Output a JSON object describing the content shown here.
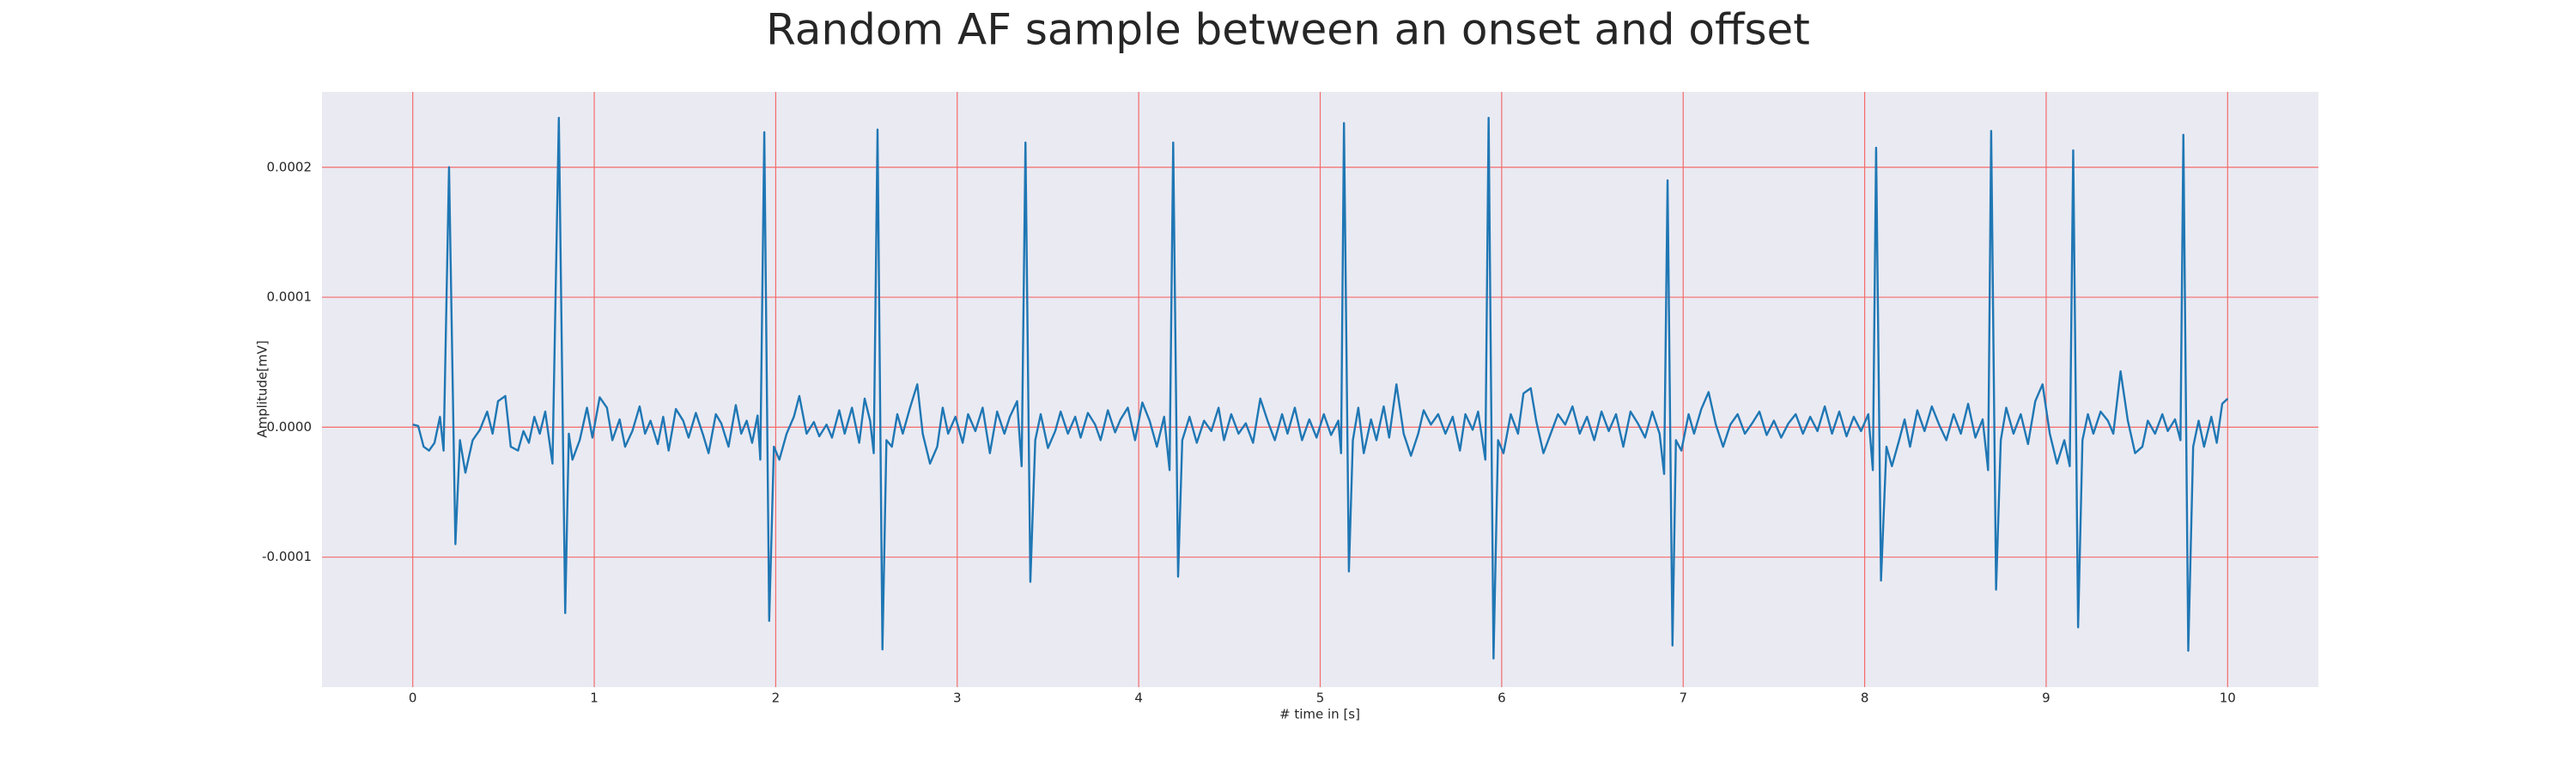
{
  "chart_data": {
    "type": "line",
    "title": "Random AF sample between an onset and offset",
    "xlabel": "# time in [s]",
    "ylabel": "Amplitude[mV]",
    "color": "#1f77b4",
    "grid": true,
    "grid_color": "#f46b6b",
    "xlim": [
      -0.5,
      10.5
    ],
    "ylim": [
      -0.0002,
      0.000258
    ],
    "xticks": [
      0,
      1,
      2,
      3,
      4,
      5,
      6,
      7,
      8,
      9,
      10
    ],
    "yticks": [
      {
        "value": -0.0001,
        "label": "-0.0001"
      },
      {
        "value": 0,
        "label": "0.0000"
      },
      {
        "value": 0.0001,
        "label": "0.0001"
      },
      {
        "value": 0.0002,
        "label": "0.0002"
      }
    ],
    "x": [
      0.0,
      0.03,
      0.06,
      0.09,
      0.12,
      0.15,
      0.17,
      0.2,
      0.235,
      0.26,
      0.29,
      0.33,
      0.37,
      0.41,
      0.44,
      0.47,
      0.51,
      0.54,
      0.58,
      0.61,
      0.64,
      0.67,
      0.7,
      0.73,
      0.77,
      0.805,
      0.84,
      0.86,
      0.88,
      0.92,
      0.96,
      0.99,
      1.03,
      1.07,
      1.1,
      1.14,
      1.17,
      1.21,
      1.25,
      1.28,
      1.31,
      1.35,
      1.38,
      1.41,
      1.45,
      1.49,
      1.52,
      1.56,
      1.6,
      1.63,
      1.67,
      1.7,
      1.74,
      1.78,
      1.81,
      1.84,
      1.87,
      1.9,
      1.915,
      1.937,
      1.964,
      1.99,
      2.02,
      2.06,
      2.1,
      2.13,
      2.17,
      2.21,
      2.24,
      2.28,
      2.31,
      2.35,
      2.38,
      2.42,
      2.46,
      2.49,
      2.52,
      2.54,
      2.561,
      2.588,
      2.61,
      2.64,
      2.67,
      2.7,
      2.74,
      2.78,
      2.81,
      2.85,
      2.89,
      2.92,
      2.95,
      2.99,
      3.03,
      3.06,
      3.1,
      3.14,
      3.18,
      3.22,
      3.26,
      3.29,
      3.33,
      3.355,
      3.376,
      3.403,
      3.43,
      3.46,
      3.5,
      3.54,
      3.57,
      3.61,
      3.65,
      3.68,
      3.72,
      3.76,
      3.79,
      3.83,
      3.87,
      3.9,
      3.94,
      3.98,
      4.02,
      4.06,
      4.1,
      4.14,
      4.17,
      4.19,
      4.217,
      4.24,
      4.28,
      4.32,
      4.36,
      4.4,
      4.44,
      4.47,
      4.51,
      4.55,
      4.59,
      4.63,
      4.67,
      4.71,
      4.75,
      4.79,
      4.82,
      4.86,
      4.9,
      4.94,
      4.98,
      5.02,
      5.06,
      5.1,
      5.115,
      5.131,
      5.158,
      5.18,
      5.21,
      5.24,
      5.28,
      5.31,
      5.35,
      5.38,
      5.42,
      5.46,
      5.5,
      5.54,
      5.57,
      5.61,
      5.65,
      5.69,
      5.73,
      5.77,
      5.8,
      5.84,
      5.87,
      5.91,
      5.928,
      5.955,
      5.98,
      6.01,
      6.05,
      6.09,
      6.12,
      6.16,
      6.19,
      6.23,
      6.27,
      6.31,
      6.35,
      6.39,
      6.43,
      6.47,
      6.51,
      6.55,
      6.59,
      6.63,
      6.67,
      6.71,
      6.75,
      6.79,
      6.83,
      6.87,
      6.895,
      6.914,
      6.941,
      6.96,
      6.99,
      7.03,
      7.06,
      7.1,
      7.14,
      7.18,
      7.22,
      7.26,
      7.3,
      7.34,
      7.38,
      7.42,
      7.46,
      7.5,
      7.54,
      7.58,
      7.62,
      7.66,
      7.7,
      7.74,
      7.78,
      7.82,
      7.86,
      7.9,
      7.94,
      7.98,
      8.02,
      8.045,
      8.063,
      8.09,
      8.12,
      8.15,
      8.19,
      8.22,
      8.25,
      8.29,
      8.33,
      8.37,
      8.41,
      8.45,
      8.49,
      8.53,
      8.57,
      8.61,
      8.65,
      8.68,
      8.697,
      8.724,
      8.75,
      8.78,
      8.82,
      8.86,
      8.9,
      8.94,
      8.98,
      9.02,
      9.06,
      9.1,
      9.13,
      9.149,
      9.176,
      9.2,
      9.23,
      9.26,
      9.3,
      9.34,
      9.37,
      9.41,
      9.45,
      9.49,
      9.53,
      9.56,
      9.6,
      9.64,
      9.67,
      9.71,
      9.74,
      9.756,
      9.783,
      9.81,
      9.84,
      9.87,
      9.91,
      9.94,
      9.97,
      10.0
    ],
    "values": [
      2e-06,
      1e-06,
      -1.5e-05,
      -1.8e-05,
      -1.2e-05,
      8e-06,
      -1.8e-05,
      0.0002,
      -9e-05,
      -1e-05,
      -3.5e-05,
      -1e-05,
      -2e-06,
      1.2e-05,
      -5e-06,
      2e-05,
      2.4e-05,
      -1.5e-05,
      -1.8e-05,
      -3e-06,
      -1.2e-05,
      8e-06,
      -5e-06,
      1.2e-05,
      -2.8e-05,
      0.000238,
      -0.000143,
      -5e-06,
      -2.5e-05,
      -1e-05,
      1.5e-05,
      -8e-06,
      2.3e-05,
      1.5e-05,
      -1e-05,
      6e-06,
      -1.5e-05,
      -3e-06,
      1.6e-05,
      -5e-06,
      5e-06,
      -1.3e-05,
      8e-06,
      -1.8e-05,
      1.4e-05,
      5e-06,
      -8e-06,
      1.1e-05,
      -6e-06,
      -2e-05,
      1e-05,
      3e-06,
      -1.5e-05,
      1.7e-05,
      -5e-06,
      5e-06,
      -1.2e-05,
      9e-06,
      -2.5e-05,
      0.000227,
      -0.000149,
      -1.5e-05,
      -2.5e-05,
      -5e-06,
      8e-06,
      2.4e-05,
      -5e-06,
      4e-06,
      -7e-06,
      2e-06,
      -8e-06,
      1.3e-05,
      -5e-06,
      1.5e-05,
      -1.2e-05,
      2.2e-05,
      5e-06,
      -2e-05,
      0.000229,
      -0.000171,
      -1e-05,
      -1.5e-05,
      1e-05,
      -5e-06,
      1.5e-05,
      3.3e-05,
      -5e-06,
      -2.8e-05,
      -1.5e-05,
      1.5e-05,
      -5e-06,
      8e-06,
      -1.2e-05,
      1e-05,
      -3e-06,
      1.5e-05,
      -2e-05,
      1.2e-05,
      -5e-06,
      8e-06,
      2e-05,
      -3e-05,
      0.000219,
      -0.000119,
      -1e-05,
      1e-05,
      -1.6e-05,
      -3e-06,
      1.2e-05,
      -5e-06,
      8e-06,
      -8e-06,
      1.1e-05,
      2e-06,
      -1e-05,
      1.3e-05,
      -4e-06,
      6e-06,
      1.5e-05,
      -1e-05,
      1.9e-05,
      5e-06,
      -1.5e-05,
      8e-06,
      -3.3e-05,
      0.000219,
      -0.000115,
      -1e-05,
      8e-06,
      -1.2e-05,
      5e-06,
      -3e-06,
      1.5e-05,
      -1e-05,
      1e-05,
      -5e-06,
      3e-06,
      -1.2e-05,
      2.2e-05,
      5e-06,
      -1e-05,
      1e-05,
      -5e-06,
      1.5e-05,
      -1e-05,
      6e-06,
      -8e-06,
      1e-05,
      -6e-06,
      5e-06,
      -2e-05,
      0.000234,
      -0.000111,
      -1e-05,
      1.5e-05,
      -2e-05,
      6e-06,
      -1e-05,
      1.6e-05,
      -8e-06,
      3.3e-05,
      -5e-06,
      -2.2e-05,
      -5e-06,
      1.3e-05,
      2e-06,
      1e-05,
      -5e-06,
      8e-06,
      -1.8e-05,
      1e-05,
      -2e-06,
      1.2e-05,
      -2.5e-05,
      0.000238,
      -0.000178,
      -1e-05,
      -2e-05,
      1e-05,
      -5e-06,
      2.6e-05,
      3e-05,
      5e-06,
      -2e-05,
      -5e-06,
      1e-05,
      2e-06,
      1.6e-05,
      -5e-06,
      8e-06,
      -1e-05,
      1.2e-05,
      -3e-06,
      1e-05,
      -1.5e-05,
      1.2e-05,
      3e-06,
      -8e-06,
      1.2e-05,
      -5e-06,
      -3.6e-05,
      0.00019,
      -0.000168,
      -1e-05,
      -1.8e-05,
      1e-05,
      -5e-06,
      1.4e-05,
      2.7e-05,
      2e-06,
      -1.5e-05,
      2e-06,
      1e-05,
      -5e-06,
      3e-06,
      1.2e-05,
      -6e-06,
      5e-06,
      -8e-06,
      3e-06,
      1e-05,
      -5e-06,
      8e-06,
      -3e-06,
      1.6e-05,
      -5e-06,
      1.2e-05,
      -7e-06,
      8e-06,
      -3e-06,
      1e-05,
      -3.3e-05,
      0.000215,
      -0.000118,
      -1.5e-05,
      -3e-05,
      -1e-05,
      6e-06,
      -1.5e-05,
      1.3e-05,
      -3e-06,
      1.6e-05,
      2e-06,
      -1e-05,
      1e-05,
      -5e-06,
      1.8e-05,
      -8e-06,
      6e-06,
      -3.3e-05,
      0.000228,
      -0.000125,
      -1e-05,
      1.5e-05,
      -5e-06,
      1e-05,
      -1.3e-05,
      2e-05,
      3.3e-05,
      -5e-06,
      -2.8e-05,
      -1e-05,
      -3e-05,
      0.000213,
      -0.000154,
      -1e-05,
      1e-05,
      -5e-06,
      1.2e-05,
      5e-06,
      -5e-06,
      4.3e-05,
      5e-06,
      -2e-05,
      -1.5e-05,
      5e-06,
      -5e-06,
      1e-05,
      -3e-06,
      6e-06,
      -1e-05,
      0.000225,
      -0.000172,
      -1.5e-05,
      5e-06,
      -1.5e-05,
      8e-06,
      -1.2e-05,
      1.8e-05,
      2.2e-05
    ]
  }
}
